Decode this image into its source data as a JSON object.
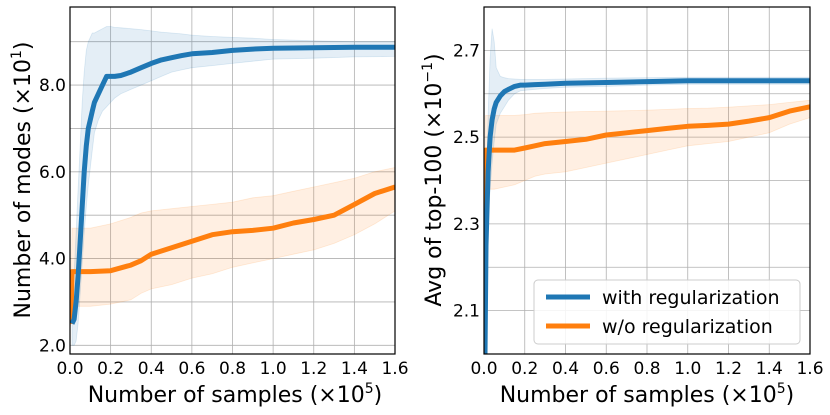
{
  "colors": {
    "with_reg": "#1f77b4",
    "without_reg": "#ff7f0e",
    "grid": "#b0b0b0"
  },
  "chart_data": [
    {
      "type": "line",
      "title": "",
      "xlabel_text": "Number of samples (×10",
      "xlabel_exp": "5",
      "xlabel_close": ")",
      "ylabel_text": "Number of modes (×10",
      "ylabel_exp": "1",
      "ylabel_close": ")",
      "xlim": [
        0.0,
        1.6
      ],
      "ylim": [
        1.8,
        9.8
      ],
      "xticks": [
        "0.0",
        "0.2",
        "0.4",
        "0.6",
        "0.8",
        "1.0",
        "1.2",
        "1.4",
        "1.6"
      ],
      "yticks": [
        "2.0",
        "4.0",
        "6.0",
        "8.0"
      ],
      "ytick_values": [
        2.0,
        4.0,
        6.0,
        8.0
      ],
      "yminor": [
        3.0,
        5.0,
        7.0,
        9.0
      ],
      "grid": true,
      "series": [
        {
          "name": "with regularization",
          "x": [
            0.01,
            0.02,
            0.03,
            0.04,
            0.05,
            0.06,
            0.07,
            0.08,
            0.09,
            0.1,
            0.11,
            0.12,
            0.14,
            0.16,
            0.18,
            0.2,
            0.22,
            0.25,
            0.3,
            0.35,
            0.4,
            0.45,
            0.5,
            0.55,
            0.6,
            0.7,
            0.8,
            0.9,
            1.0,
            1.2,
            1.4,
            1.6
          ],
          "values": [
            2.5,
            2.6,
            3.0,
            3.6,
            4.4,
            5.2,
            6.0,
            6.6,
            7.0,
            7.2,
            7.4,
            7.6,
            7.8,
            8.0,
            8.2,
            8.2,
            8.2,
            8.22,
            8.3,
            8.4,
            8.5,
            8.58,
            8.63,
            8.68,
            8.72,
            8.75,
            8.8,
            8.83,
            8.85,
            8.86,
            8.87,
            8.87
          ],
          "upper": [
            3.2,
            3.6,
            4.6,
            5.6,
            6.6,
            7.6,
            8.3,
            8.8,
            9.0,
            9.1,
            9.2,
            9.2,
            9.25,
            9.3,
            9.35,
            9.35,
            9.33,
            9.32,
            9.3,
            9.28,
            9.25,
            9.22,
            9.2,
            9.18,
            9.15,
            9.12,
            9.1,
            9.08,
            9.05,
            9.02,
            9.0,
            9.0
          ],
          "lower": [
            2.0,
            2.0,
            2.1,
            2.5,
            3.2,
            3.9,
            4.6,
            5.2,
            5.7,
            6.1,
            6.5,
            6.9,
            7.2,
            7.4,
            7.5,
            7.6,
            7.7,
            7.8,
            7.9,
            8.0,
            8.1,
            8.2,
            8.3,
            8.35,
            8.4,
            8.45,
            8.5,
            8.55,
            8.6,
            8.62,
            8.65,
            8.66
          ]
        },
        {
          "name": "w/o regularization",
          "x": [
            0.0,
            0.005,
            0.01,
            0.1,
            0.2,
            0.3,
            0.35,
            0.4,
            0.5,
            0.6,
            0.7,
            0.8,
            0.9,
            1.0,
            1.1,
            1.2,
            1.3,
            1.4,
            1.5,
            1.6
          ],
          "values": [
            2.5,
            2.6,
            3.7,
            3.7,
            3.72,
            3.85,
            3.95,
            4.1,
            4.25,
            4.4,
            4.55,
            4.62,
            4.65,
            4.7,
            4.82,
            4.9,
            5.0,
            5.25,
            5.5,
            5.65
          ],
          "upper": [
            2.6,
            3.2,
            4.7,
            4.7,
            4.8,
            4.95,
            5.05,
            5.1,
            5.15,
            5.2,
            5.25,
            5.3,
            5.4,
            5.45,
            5.55,
            5.65,
            5.75,
            5.85,
            6.0,
            6.1
          ],
          "lower": [
            2.4,
            2.5,
            2.9,
            2.9,
            2.95,
            3.05,
            3.2,
            3.3,
            3.4,
            3.55,
            3.65,
            3.8,
            3.9,
            4.0,
            4.1,
            4.2,
            4.35,
            4.55,
            4.8,
            5.1
          ]
        }
      ]
    },
    {
      "type": "line",
      "title": "",
      "xlabel_text": "Number of samples (×10",
      "xlabel_exp": "5",
      "xlabel_close": ")",
      "ylabel_text": "Avg of top-100 (×10",
      "ylabel_exp": "−1",
      "ylabel_close": ")",
      "xlim": [
        0.0,
        1.6
      ],
      "ylim": [
        2.0,
        2.8
      ],
      "xticks": [
        "0.0",
        "0.2",
        "0.4",
        "0.6",
        "0.8",
        "1.0",
        "1.2",
        "1.4",
        "1.6"
      ],
      "yticks": [
        "2.1",
        "2.3",
        "2.5",
        "2.7"
      ],
      "ytick_values": [
        2.1,
        2.3,
        2.5,
        2.7
      ],
      "yminor": [
        2.2,
        2.4,
        2.6
      ],
      "grid": true,
      "legend_position": "lower-right",
      "series": [
        {
          "name": "with regularization",
          "x": [
            0.0,
            0.005,
            0.01,
            0.02,
            0.03,
            0.04,
            0.05,
            0.06,
            0.08,
            0.1,
            0.12,
            0.15,
            0.18,
            0.2,
            0.25,
            0.3,
            0.4,
            0.6,
            0.8,
            1.0,
            1.2,
            1.4,
            1.6
          ],
          "values": [
            2.0,
            2.0,
            2.25,
            2.42,
            2.5,
            2.54,
            2.565,
            2.58,
            2.595,
            2.605,
            2.61,
            2.617,
            2.62,
            2.62,
            2.621,
            2.622,
            2.624,
            2.626,
            2.628,
            2.63,
            2.63,
            2.63,
            2.63
          ],
          "upper": [
            2.0,
            2.0,
            2.3,
            2.55,
            2.68,
            2.75,
            2.72,
            2.66,
            2.64,
            2.637,
            2.635,
            2.634,
            2.633,
            2.633,
            2.633,
            2.633,
            2.634,
            2.636,
            2.637,
            2.638,
            2.638,
            2.638,
            2.638
          ],
          "lower": [
            2.0,
            2.0,
            2.18,
            2.32,
            2.38,
            2.44,
            2.49,
            2.53,
            2.555,
            2.57,
            2.585,
            2.6,
            2.607,
            2.608,
            2.61,
            2.612,
            2.615,
            2.617,
            2.62,
            2.622,
            2.622,
            2.622,
            2.622
          ]
        },
        {
          "name": "w/o regularization",
          "x": [
            0.0,
            0.004,
            0.008,
            0.05,
            0.1,
            0.15,
            0.2,
            0.25,
            0.3,
            0.4,
            0.5,
            0.6,
            0.7,
            0.8,
            0.9,
            1.0,
            1.1,
            1.2,
            1.3,
            1.4,
            1.5,
            1.6
          ],
          "values": [
            2.0,
            2.0,
            2.47,
            2.47,
            2.47,
            2.47,
            2.475,
            2.48,
            2.485,
            2.49,
            2.495,
            2.505,
            2.51,
            2.515,
            2.52,
            2.525,
            2.527,
            2.53,
            2.537,
            2.545,
            2.56,
            2.57
          ],
          "upper": [
            2.0,
            2.0,
            2.55,
            2.55,
            2.55,
            2.55,
            2.552,
            2.555,
            2.556,
            2.558,
            2.559,
            2.56,
            2.561,
            2.562,
            2.564,
            2.566,
            2.567,
            2.569,
            2.572,
            2.575,
            2.58,
            2.585
          ],
          "lower": [
            2.0,
            2.0,
            2.38,
            2.38,
            2.385,
            2.39,
            2.4,
            2.41,
            2.415,
            2.42,
            2.43,
            2.44,
            2.45,
            2.46,
            2.47,
            2.48,
            2.485,
            2.49,
            2.5,
            2.51,
            2.53,
            2.545
          ]
        }
      ]
    }
  ]
}
